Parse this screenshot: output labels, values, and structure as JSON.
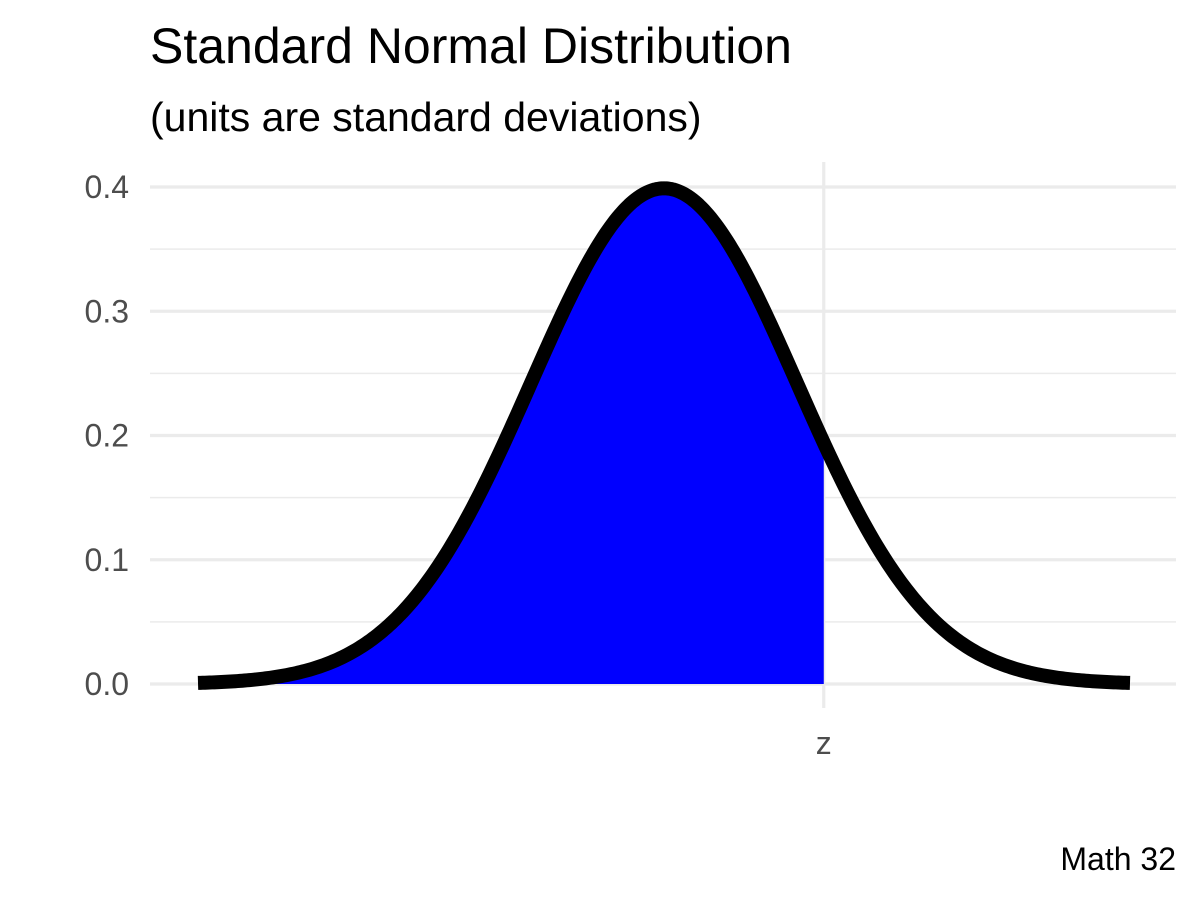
{
  "chart_data": {
    "type": "area",
    "title": "Standard Normal Distribution",
    "subtitle": "(units are standard deviations)",
    "caption": "Math 32",
    "distribution": "standard normal",
    "x_range": [
      -3.5,
      3.5
    ],
    "y_range": [
      0,
      0.4
    ],
    "y_ticks": [
      "0.0",
      "0.1",
      "0.2",
      "0.3",
      "0.4"
    ],
    "x_ticks": [
      {
        "value": 1.2,
        "label": "z"
      }
    ],
    "shaded_region": {
      "from": -3.5,
      "to": 1.2
    },
    "grid": true,
    "colors": {
      "fill": "#0000ff",
      "curve": "#000000",
      "grid": "#ebebeb",
      "tick_text": "#4d4d4d"
    }
  }
}
